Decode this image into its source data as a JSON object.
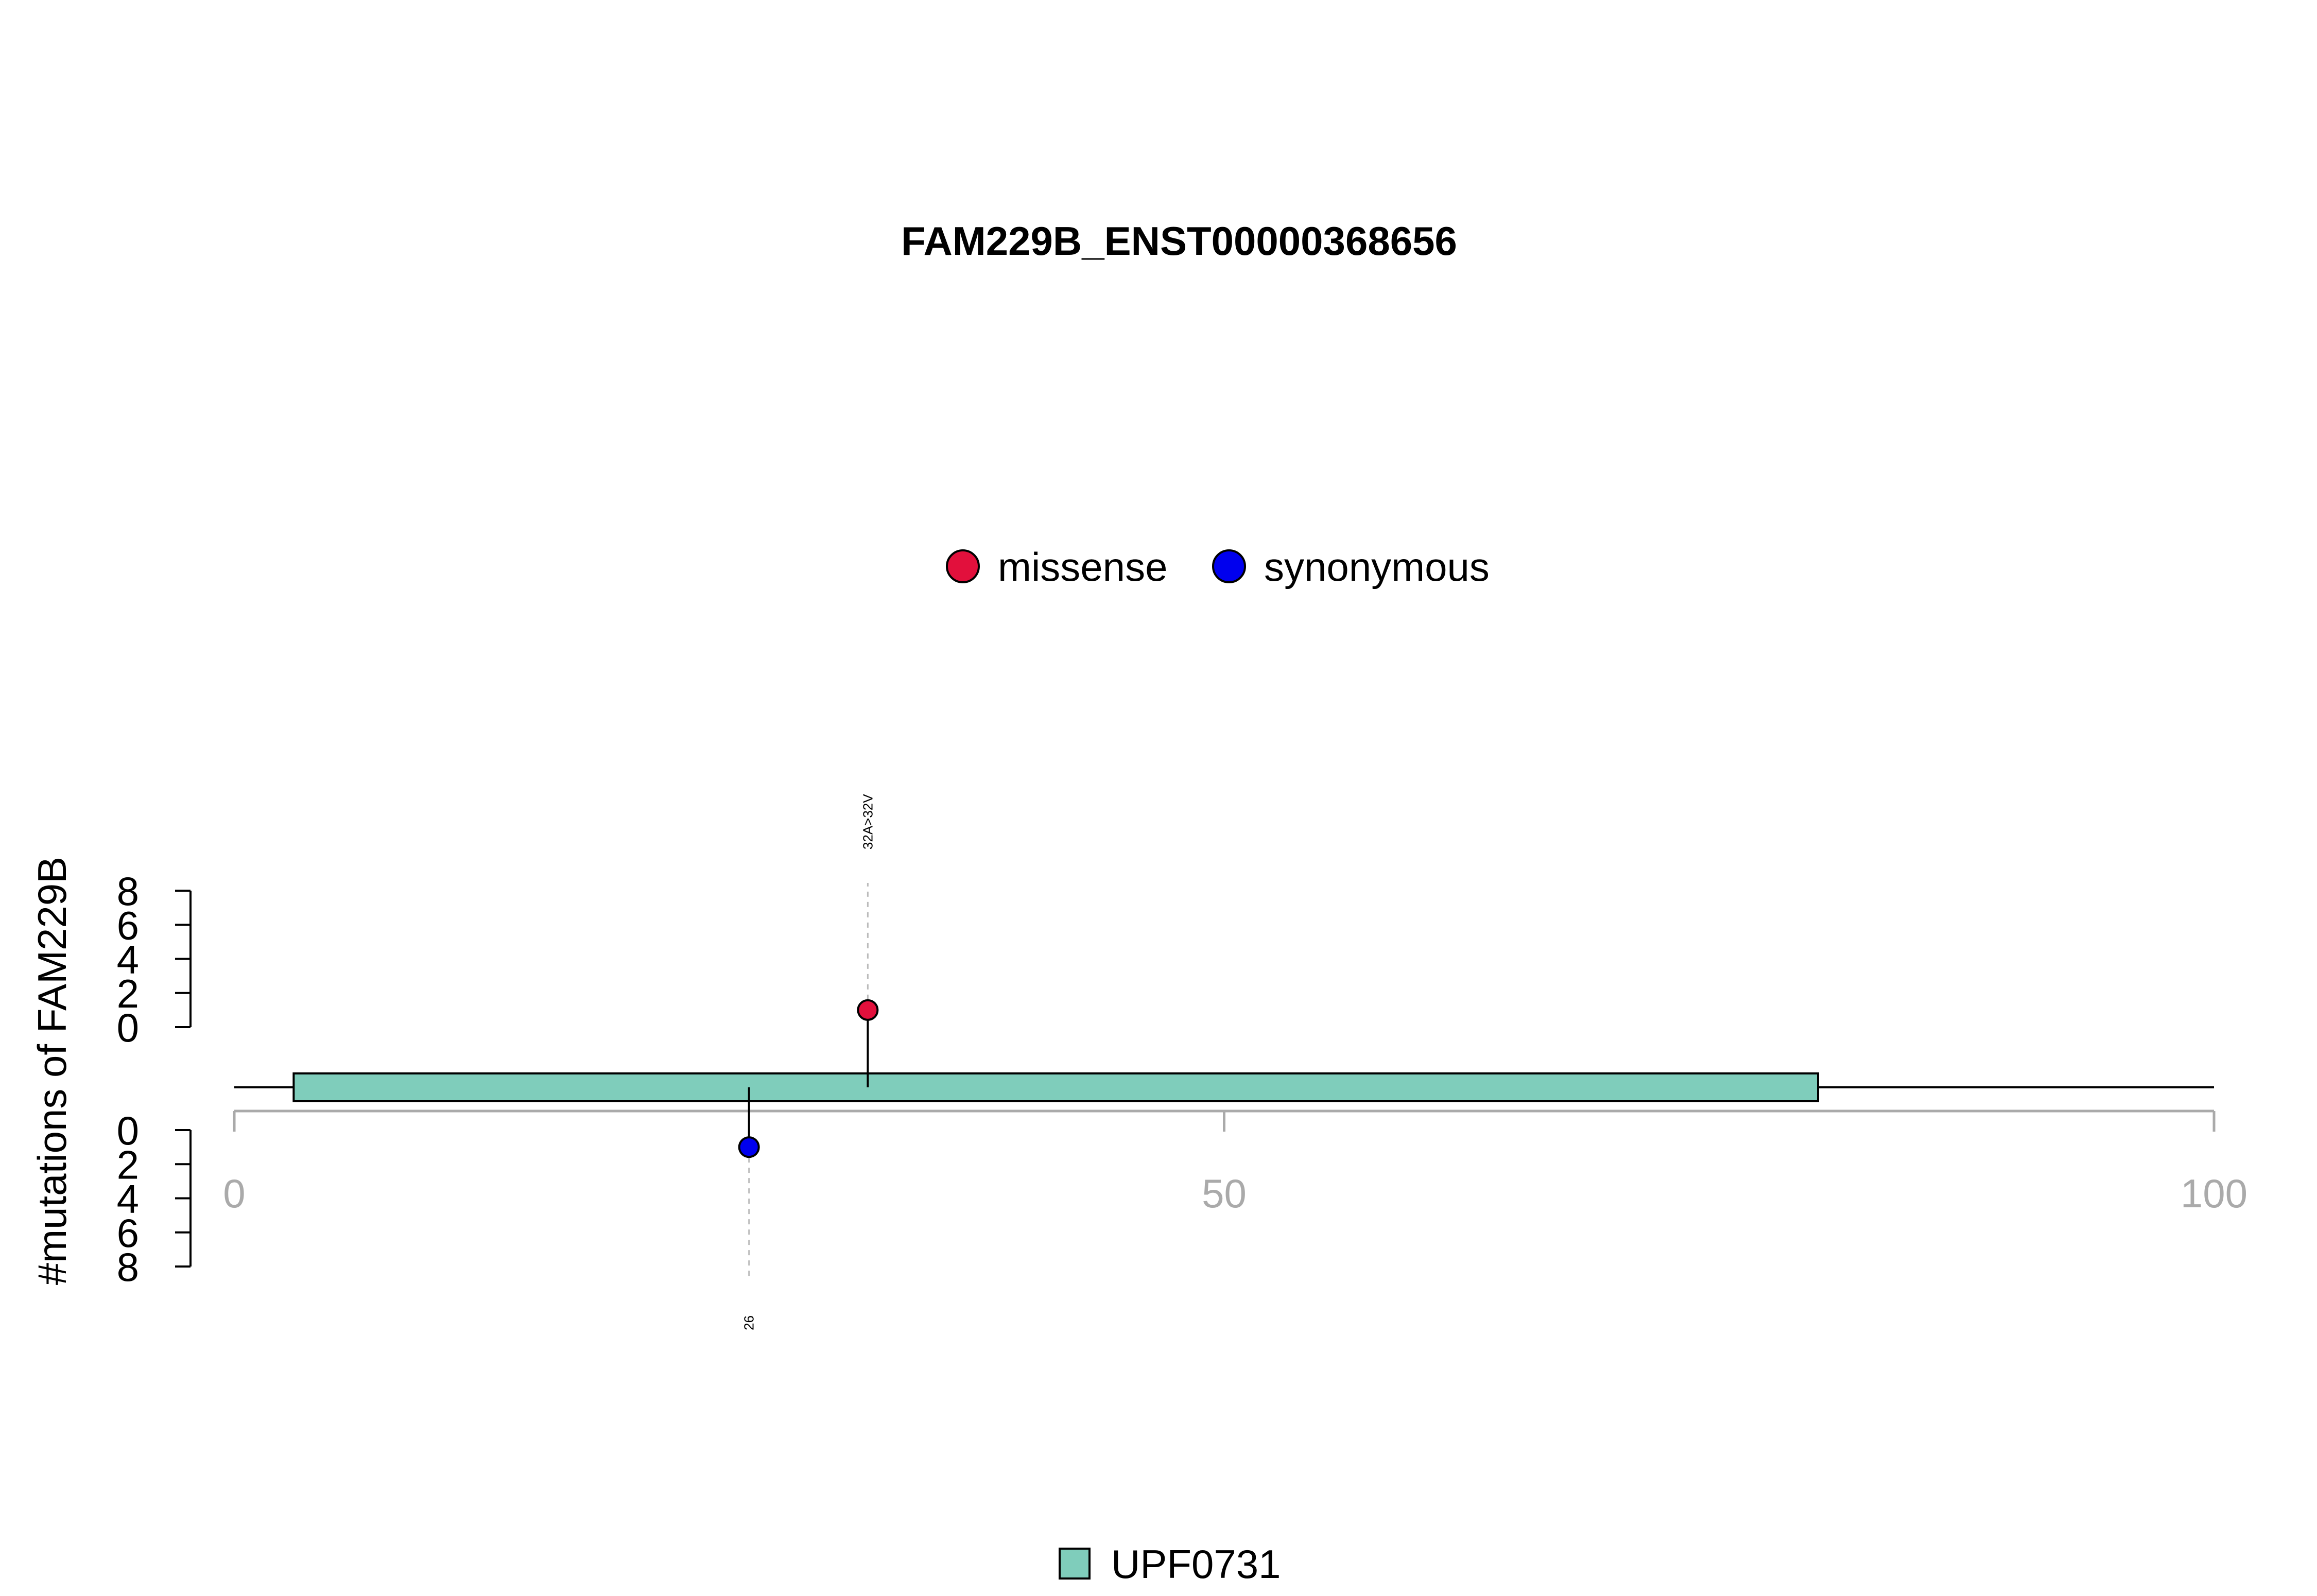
{
  "chart_data": {
    "type": "lollipop",
    "title": "FAM229B_ENST00000368656",
    "ylabel": "#mutations of FAM229B",
    "xlim": [
      0,
      100
    ],
    "x_ticks": [
      "0",
      "50",
      "100"
    ],
    "ylim": [
      0,
      8
    ],
    "y_ticks_top": [
      "0",
      "2",
      "4",
      "6",
      "8"
    ],
    "y_ticks_bottom": [
      "0",
      "2",
      "4",
      "6",
      "8"
    ],
    "legend": {
      "position": "top-center",
      "items": [
        {
          "name": "missense",
          "color": "#e2103c"
        },
        {
          "name": "synonymous",
          "color": "#0000ee"
        }
      ]
    },
    "mutations": [
      {
        "position": 32,
        "count": 1,
        "type": "missense",
        "label": "32A>32V",
        "side": "top",
        "color": "#e2103c"
      },
      {
        "position": 26,
        "count": 1,
        "type": "synonymous",
        "label": "26",
        "side": "bottom",
        "color": "#0000ee"
      }
    ],
    "domains": [
      {
        "name": "UPF0731",
        "start": 3,
        "end": 80,
        "color": "#7fcdbb"
      }
    ],
    "protein_length": 100
  }
}
